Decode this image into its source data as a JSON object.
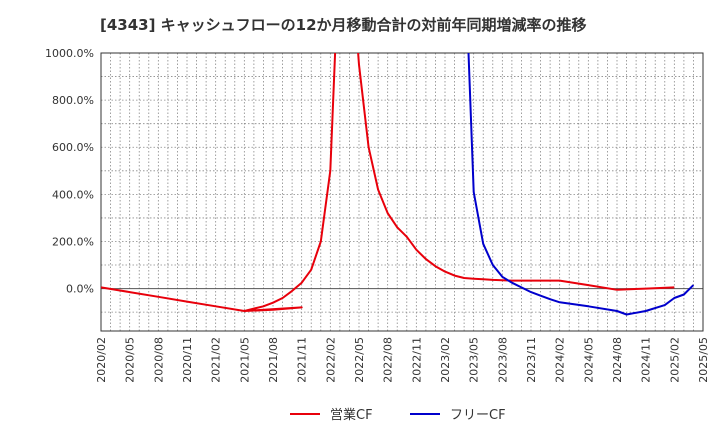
{
  "title": "[4343]  キャッシュフローの12か月移動合計の対前年同期増減率の推移",
  "chart_data": {
    "type": "line",
    "title": "[4343]  キャッシュフローの12か月移動合計の対前年同期増減率の推移",
    "xlabel": "",
    "ylabel": "",
    "ylim": [
      -180,
      1000
    ],
    "grid": true,
    "legend_position": "bottom",
    "y_ticks": [
      "1000.0%",
      "800.0%",
      "600.0%",
      "400.0%",
      "200.0%",
      "0.0%"
    ],
    "y_tick_values": [
      1000,
      800,
      600,
      400,
      200,
      0
    ],
    "x_ticks": [
      "2020/02",
      "2020/05",
      "2020/08",
      "2020/11",
      "2021/02",
      "2021/05",
      "2021/08",
      "2021/11",
      "2022/02",
      "2022/05",
      "2022/08",
      "2022/11",
      "2023/02",
      "2023/05",
      "2023/08",
      "2023/11",
      "2024/02",
      "2024/05",
      "2024/08",
      "2024/11",
      "2025/02",
      "2025/05"
    ],
    "x_range": [
      "2020/02",
      "2025/05"
    ],
    "series": [
      {
        "name": "営業CF",
        "color": "#e8000b",
        "points": [
          [
            "2020/02",
            5
          ],
          [
            "2020/05",
            -15
          ],
          [
            "2020/08",
            -35
          ],
          [
            "2020/11",
            -55
          ],
          [
            "2021/02",
            -75
          ],
          [
            "2021/05",
            -95
          ],
          [
            "2021/08",
            -90
          ],
          [
            "2021/11",
            -80
          ],
          [
            "2021/05",
            -95
          ],
          [
            "2021/06",
            -85
          ],
          [
            "2021/07",
            -75
          ],
          [
            "2021/08",
            -60
          ],
          [
            "2021/09",
            -40
          ],
          [
            "2021/10",
            -10
          ],
          [
            "2021/11",
            25
          ],
          [
            "2021/12",
            80
          ],
          [
            "2022/01",
            200
          ],
          [
            "2022/02",
            500
          ],
          [
            "2022/03",
            1500
          ]
        ]
      },
      {
        "name": "営業CF",
        "color": "#e8000b",
        "points": [
          [
            "2022/04",
            1500
          ],
          [
            "2022/05",
            950
          ],
          [
            "2022/06",
            600
          ],
          [
            "2022/07",
            420
          ],
          [
            "2022/08",
            320
          ],
          [
            "2022/09",
            260
          ],
          [
            "2022/10",
            220
          ],
          [
            "2022/11",
            165
          ],
          [
            "2022/12",
            125
          ],
          [
            "2023/01",
            95
          ],
          [
            "2023/02",
            72
          ],
          [
            "2023/03",
            55
          ],
          [
            "2023/04",
            45
          ],
          [
            "2023/05",
            42
          ],
          [
            "2023/06",
            40
          ],
          [
            "2023/07",
            37
          ],
          [
            "2023/08",
            35
          ],
          [
            "2023/09",
            34
          ],
          [
            "2023/10",
            34
          ],
          [
            "2023/11",
            34
          ],
          [
            "2024/02",
            34
          ],
          [
            "2024/05",
            15
          ],
          [
            "2024/08",
            -5
          ],
          [
            "2024/11",
            0
          ],
          [
            "2025/02",
            5
          ]
        ]
      },
      {
        "name": "フリーCF",
        "color": "#0000cc",
        "points": [
          [
            "2023/04",
            1500
          ],
          [
            "2023/05",
            410
          ],
          [
            "2023/06",
            190
          ],
          [
            "2023/07",
            100
          ],
          [
            "2023/08",
            50
          ],
          [
            "2023/09",
            25
          ],
          [
            "2023/10",
            5
          ],
          [
            "2023/11",
            -15
          ],
          [
            "2023/12",
            -30
          ],
          [
            "2024/01",
            -45
          ],
          [
            "2024/02",
            -58
          ],
          [
            "2024/05",
            -75
          ],
          [
            "2024/08",
            -95
          ],
          [
            "2024/09",
            -110
          ],
          [
            "2024/11",
            -95
          ],
          [
            "2025/01",
            -70
          ],
          [
            "2025/02",
            -40
          ],
          [
            "2025/03",
            -25
          ],
          [
            "2025/04",
            15
          ]
        ]
      }
    ]
  },
  "legend": {
    "items": [
      {
        "label": "営業CF",
        "color": "#e8000b"
      },
      {
        "label": "フリーCF",
        "color": "#0000cc"
      }
    ]
  }
}
